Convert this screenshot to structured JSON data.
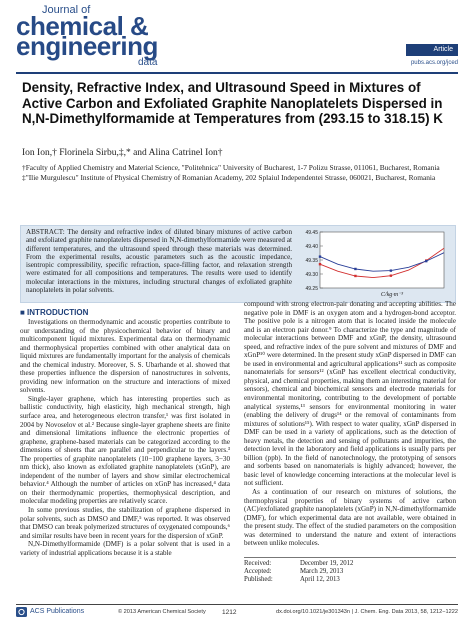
{
  "journal": {
    "line1": "Journal of",
    "line2": "chemical &",
    "line3": "engineering",
    "line4": "data",
    "badge": "Article",
    "url": "pubs.acs.org/jced"
  },
  "title": "Density, Refractive Index, and Ultrasound Speed in Mixtures of Active Carbon and Exfoliated Graphite Nanoplatelets Dispersed in N,N-Dimethylformamide at Temperatures from (293.15 to 318.15) K",
  "authors": "Ion Ion,† Florinela Sirbu,‡,* and Alina Catrinel Ion†",
  "affiliations": [
    "†Faculty of Applied Chemistry and Material Science, \"Politehnica\" University of Bucharest, 1-7 Polizu Strasse, 011061, Bucharest, Romania",
    "‡\"Ilie Murgulescu\" Institute of Physical Chemistry of Romanian Academy, 202 Splaiul Independentei Strasse, 060021, Bucharest, Romania"
  ],
  "abstract": "ABSTRACT: The density and refractive index of diluted binary mixtures of active carbon and exfoliated graphite nanoplatelets dispersed in N,N-dimethylformamide were measured at different temperatures, and the ultrasound speed through these materials was determined. From the experimental results, acoustic parameters such as the acoustic impedance, isentropic compressibility, specific refraction, space-filling factor, and relaxation strength were estimated for all compositions and temperatures. The results were used to identify molecular interactions in the mixtures, including structural changes of exfoliated graphite nanoplatelets in polar solvents.",
  "chart_data": {
    "type": "line",
    "xlabel": "C/kg·m⁻³",
    "ylabel": "",
    "ylim": [
      49.25,
      49.45
    ],
    "yticks": [
      "49.45",
      "49.40",
      "49.35",
      "49.30",
      "49.25"
    ],
    "series": [
      {
        "color": "#d23030",
        "x": [
          0,
          2,
          4,
          6,
          8,
          10,
          12,
          14
        ],
        "values": [
          49.335,
          49.31,
          49.293,
          49.287,
          49.294,
          49.314,
          49.348,
          49.392
        ]
      },
      {
        "color": "#2a3f98",
        "x": [
          0,
          2,
          4,
          6,
          8,
          10,
          12,
          14
        ],
        "values": [
          49.362,
          49.335,
          49.318,
          49.31,
          49.312,
          49.324,
          49.346,
          49.376
        ]
      }
    ]
  },
  "intro_heading": "■ INTRODUCTION",
  "col1": [
    "Investigations on thermodynamic and acoustic properties contribute to our understanding of the physicochemical behavior of binary and multicomponent liquid mixtures. Experimental data on thermodynamic and thermophysical properties combined with other analytical data on liquid mixtures are fundamentally important for the analysis of chemicals and the chemical industry. Moreover, S. S. Ubarhande et al. showed that these properties influence the dispersion of nanostructures in solvents, providing new information on the structure and interactions of mixed solvents.",
    "Single-layer graphene, which has interesting properties such as ballistic conductivity, high elasticity, high mechanical strength, high surface area, and heterogeneous electron transfer,¹ was first isolated in 2004 by Novoselov et al.² Because single-layer graphene sheets are finite and dimensional limitations influence the electronic properties of graphene, graphene-based materials can be categorized according to the dimensions of sheets that are parallel and perpendicular to the layers.³ The properties of graphite nanoplatelets (10−100 graphene layers, 3−30 nm thick), also known as exfoliated graphite nanoplatelets (xGnP), are independent of the number of layers and show similar electrochemical behavior.⁴ Although the number of articles on xGnP has increased,⁴ data on their thermodynamic properties, thermophysical description, and molecular modeling properties are relatively scarce.",
    "In some previous studies, the stabilization of graphene dispersed in polar solvents, such as DMSO and DMF,⁵ was reported. It was observed that DMSO can break polymerized structures of oxygenated compounds,⁶ and similar results have been in recent years for the dispersion of xGnP.",
    "N,N-Dimethylformamide (DMF) is a polar solvent that is used in a variety of industrial applications because it is a stable"
  ],
  "col2": [
    "compound with strong electron-pair donating and accepting abilities. The negative pole in DMF is an oxygen atom and a hydrogen-bond acceptor. The positive pole is a nitrogen atom that is located inside the molecule and is an electron pair donor.⁹ To characterize the type and magnitude of molecular interactions between DMF and xGnP, the density, ultrasound speed, and refractive index of the pure solvent and mixtures of DMF and xGnP¹⁰ were determined. In the present study xGnP dispersed in DMF can be used in environmental and agricultural applications¹¹ such as composite nanomaterials for sensors¹² (xGnP has excellent electrical conductivity, physical, and chemical properties, making them an interesting material for sensors), chemical and biochemical sensors and electrode materials for environmental monitoring, contributing to the development of portable analytical systems,¹³ sensors for environmental monitoring in water (enabling the delivery of drugs¹⁴ or the removal of contaminants from mixtures of solutions¹⁵). With respect to water quality, xGnP dispersed in DMF can be used in a variety of applications, such as the detection of heavy metals, the detection and sensing of pollutants and impurities, the detection level in the laboratory and field applications is usually parts per billion (ppb). In the field of nanotechnology, the prototyping of sensors and sorbents based on nanomaterials is highly advanced; however, the basic level of knowledge concerning interactions at the molecular level is not sufficient.",
    "As a continuation of our research on mixtures of solutions, the thermophysical properties of binary systems of active carbon (AC)/exfoliated graphite nanoplatelets (xGnP) in N,N-dimethylformamide (DMF), for which experimental data are not available, were obtained in the present study. The effect of the studied parameters on the composition was determined to understand the nature and extent of interactions between unlike molecules."
  ],
  "dates": [
    {
      "label": "Received:",
      "value": "December 19, 2012"
    },
    {
      "label": "Accepted:",
      "value": "March 29, 2013"
    },
    {
      "label": "Published:",
      "value": "April 12, 2013"
    }
  ],
  "footer": {
    "publisher": "ACS Publications",
    "copyright": "© 2013 American Chemical Society",
    "page": "1212",
    "doi": "dx.doi.org/10.1021/je301343n | J. Chem. Eng. Data 2013, 58, 1212−1222"
  }
}
